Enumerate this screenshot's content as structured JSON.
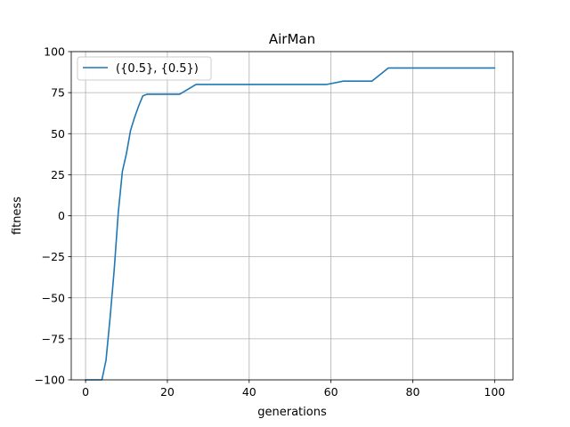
{
  "chart_data": {
    "type": "line",
    "title": "AirMan",
    "xlabel": "generations",
    "ylabel": "fitness",
    "xlim": [
      -3.5,
      104.5
    ],
    "ylim": [
      -100,
      100
    ],
    "xticks": [
      0,
      20,
      40,
      60,
      80,
      100
    ],
    "yticks": [
      -100,
      -75,
      -50,
      -25,
      0,
      25,
      50,
      75,
      100
    ],
    "xtick_labels": [
      "0",
      "20",
      "40",
      "60",
      "80",
      "100"
    ],
    "ytick_labels": [
      "−100",
      "−75",
      "−50",
      "−25",
      "0",
      "25",
      "50",
      "75",
      "100"
    ],
    "grid": true,
    "legend": {
      "position": "upper-left"
    },
    "colors": {
      "series": "#1f77b4",
      "grid": "#b0b0b0",
      "axes": "#000000"
    },
    "series": [
      {
        "name": "({0.5}, {0.5})",
        "x": [
          0,
          1,
          2,
          3,
          4,
          5,
          6,
          7,
          8,
          9,
          10,
          11,
          12,
          13,
          14,
          15,
          23,
          27,
          59,
          63,
          70,
          74,
          100
        ],
        "y": [
          -100,
          -100,
          -100,
          -100,
          -100,
          -88,
          -62,
          -33,
          2,
          27,
          38,
          52,
          60,
          67,
          73,
          74,
          74,
          80,
          80,
          82,
          82,
          90,
          90
        ]
      }
    ]
  }
}
